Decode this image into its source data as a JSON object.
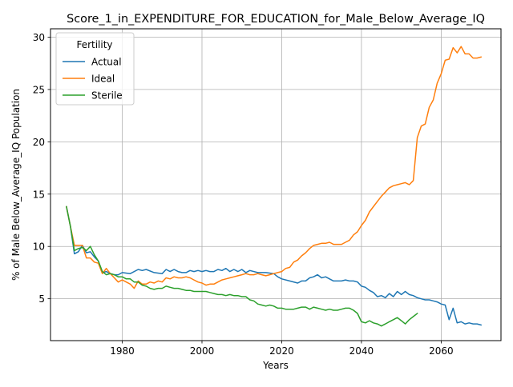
{
  "chart_data": {
    "type": "line",
    "title": "Score_1_in_EXPENDITURE_FOR_EDUCATION_for_Male_Below_Average_IQ",
    "xlabel": "Years",
    "ylabel": "% of Male Below_Average_IQ Population",
    "xlim": [
      1962,
      2075
    ],
    "ylim": [
      1.0,
      30.8
    ],
    "xticks": [
      1980,
      2000,
      2020,
      2040,
      2060
    ],
    "yticks": [
      5,
      10,
      15,
      20,
      25,
      30
    ],
    "grid": true,
    "legend": {
      "title": "Fertility",
      "placement": "top-left"
    },
    "series": [
      {
        "name": "Actual",
        "color": "#1f77b4",
        "x": [
          1966,
          1967,
          1968,
          1969,
          1970,
          1971,
          1972,
          1973,
          1974,
          1975,
          1976,
          1977,
          1978,
          1979,
          1980,
          1982,
          1984,
          1985,
          1986,
          1988,
          1990,
          1991,
          1992,
          1993,
          1994,
          1995,
          1996,
          1997,
          1998,
          1999,
          2000,
          2001,
          2002,
          2003,
          2004,
          2005,
          2006,
          2007,
          2008,
          2009,
          2010,
          2011,
          2012,
          2014,
          2016,
          2018,
          2019,
          2020,
          2022,
          2024,
          2025,
          2026,
          2027,
          2028,
          2029,
          2030,
          2031,
          2032,
          2033,
          2034,
          2035,
          2036,
          2037,
          2038,
          2039,
          2040,
          2041,
          2042,
          2043,
          2044,
          2045,
          2046,
          2047,
          2048,
          2049,
          2050,
          2051,
          2052,
          2053,
          2054,
          2055,
          2056,
          2057,
          2058,
          2059,
          2060,
          2061,
          2062,
          2063,
          2064,
          2065,
          2066,
          2067,
          2068,
          2069,
          2070
        ],
        "y": [
          13.8,
          11.9,
          9.3,
          9.5,
          10.1,
          9.4,
          9.5,
          9.0,
          8.6,
          7.5,
          7.6,
          7.4,
          7.3,
          7.3,
          7.5,
          7.4,
          7.8,
          7.7,
          7.8,
          7.5,
          7.4,
          7.8,
          7.6,
          7.8,
          7.6,
          7.5,
          7.5,
          7.7,
          7.6,
          7.7,
          7.6,
          7.7,
          7.6,
          7.6,
          7.8,
          7.7,
          7.9,
          7.6,
          7.8,
          7.6,
          7.8,
          7.5,
          7.7,
          7.5,
          7.5,
          7.4,
          7.1,
          6.9,
          6.7,
          6.5,
          6.7,
          6.7,
          7.0,
          7.1,
          7.3,
          7.0,
          7.1,
          6.9,
          6.7,
          6.7,
          6.7,
          6.8,
          6.7,
          6.7,
          6.6,
          6.2,
          6.1,
          5.8,
          5.6,
          5.2,
          5.3,
          5.1,
          5.5,
          5.2,
          5.7,
          5.4,
          5.7,
          5.4,
          5.3,
          5.1,
          5.0,
          4.9,
          4.9,
          4.8,
          4.7,
          4.5,
          4.4,
          3.0,
          4.1,
          2.7,
          2.8,
          2.6,
          2.7,
          2.6,
          2.6,
          2.5
        ]
      },
      {
        "name": "Ideal",
        "color": "#ff7f0e",
        "x": [
          1966,
          1967,
          1968,
          1969,
          1970,
          1971,
          1972,
          1973,
          1974,
          1975,
          1976,
          1977,
          1978,
          1979,
          1980,
          1982,
          1983,
          1984,
          1985,
          1986,
          1987,
          1988,
          1989,
          1990,
          1991,
          1992,
          1993,
          1994,
          1995,
          1996,
          1997,
          1998,
          1999,
          2000,
          2001,
          2002,
          2003,
          2004,
          2005,
          2006,
          2007,
          2008,
          2009,
          2010,
          2011,
          2012,
          2013,
          2014,
          2015,
          2016,
          2017,
          2018,
          2019,
          2020,
          2021,
          2022,
          2023,
          2024,
          2025,
          2026,
          2027,
          2028,
          2029,
          2030,
          2031,
          2032,
          2033,
          2034,
          2035,
          2036,
          2037,
          2038,
          2039,
          2040,
          2041,
          2042,
          2043,
          2044,
          2045,
          2046,
          2047,
          2048,
          2049,
          2050,
          2051,
          2052,
          2053,
          2054,
          2055,
          2056,
          2057,
          2058,
          2059,
          2060,
          2061,
          2062,
          2063,
          2064,
          2065,
          2066,
          2067,
          2068,
          2069,
          2070
        ],
        "y": [
          13.8,
          11.9,
          10.1,
          10.1,
          10.1,
          8.9,
          8.9,
          8.5,
          8.4,
          7.4,
          7.9,
          7.4,
          7.0,
          6.6,
          6.8,
          6.4,
          6.0,
          6.7,
          6.4,
          6.4,
          6.6,
          6.5,
          6.7,
          6.6,
          7.0,
          6.9,
          7.1,
          7.0,
          7.0,
          7.1,
          7.0,
          6.8,
          6.6,
          6.5,
          6.3,
          6.4,
          6.4,
          6.6,
          6.8,
          6.9,
          7.0,
          7.1,
          7.2,
          7.3,
          7.4,
          7.3,
          7.3,
          7.4,
          7.3,
          7.2,
          7.3,
          7.4,
          7.5,
          7.6,
          7.9,
          8.0,
          8.5,
          8.7,
          9.1,
          9.4,
          9.8,
          10.1,
          10.2,
          10.3,
          10.3,
          10.4,
          10.2,
          10.2,
          10.2,
          10.4,
          10.6,
          11.1,
          11.4,
          12.0,
          12.5,
          13.3,
          13.8,
          14.3,
          14.8,
          15.2,
          15.6,
          15.8,
          15.9,
          16.0,
          16.1,
          15.9,
          16.3,
          20.4,
          21.5,
          21.7,
          23.3,
          24.0,
          25.6,
          26.5,
          27.8,
          27.9,
          29.0,
          28.5,
          29.1,
          28.4,
          28.4,
          28.0,
          28.0,
          28.1
        ]
      },
      {
        "name": "Sterile",
        "color": "#2ca02c",
        "x": [
          1966,
          1967,
          1968,
          1969,
          1970,
          1971,
          1972,
          1973,
          1974,
          1975,
          1976,
          1977,
          1978,
          1979,
          1980,
          1981,
          1982,
          1983,
          1984,
          1985,
          1986,
          1987,
          1988,
          1989,
          1990,
          1991,
          1992,
          1993,
          1994,
          1995,
          1996,
          1997,
          1998,
          1999,
          2000,
          2001,
          2002,
          2003,
          2004,
          2005,
          2006,
          2007,
          2008,
          2009,
          2010,
          2011,
          2012,
          2013,
          2014,
          2015,
          2016,
          2017,
          2018,
          2019,
          2020,
          2021,
          2022,
          2023,
          2024,
          2025,
          2026,
          2027,
          2028,
          2029,
          2030,
          2031,
          2032,
          2033,
          2034,
          2035,
          2036,
          2037,
          2038,
          2039,
          2040,
          2041,
          2042,
          2043,
          2044,
          2045,
          2046,
          2047,
          2048,
          2049,
          2050,
          2051,
          2052,
          2053,
          2054
        ],
        "y": [
          13.8,
          11.9,
          9.6,
          9.8,
          9.9,
          9.6,
          10.0,
          9.2,
          8.6,
          7.6,
          7.3,
          7.4,
          7.3,
          7.1,
          7.1,
          6.9,
          6.9,
          6.6,
          6.6,
          6.3,
          6.2,
          6.0,
          5.9,
          6.0,
          6.0,
          6.2,
          6.1,
          6.0,
          6.0,
          5.9,
          5.8,
          5.8,
          5.7,
          5.7,
          5.7,
          5.7,
          5.6,
          5.5,
          5.4,
          5.4,
          5.3,
          5.4,
          5.3,
          5.3,
          5.2,
          5.2,
          4.9,
          4.8,
          4.5,
          4.4,
          4.3,
          4.4,
          4.3,
          4.1,
          4.1,
          4.0,
          4.0,
          4.0,
          4.1,
          4.2,
          4.2,
          4.0,
          4.2,
          4.1,
          4.0,
          3.9,
          4.0,
          3.9,
          3.9,
          4.0,
          4.1,
          4.1,
          3.9,
          3.6,
          2.8,
          2.7,
          2.9,
          2.7,
          2.6,
          2.4,
          2.6,
          2.8,
          3.0,
          3.2,
          2.9,
          2.6,
          3.0,
          3.3,
          3.6
        ]
      }
    ]
  }
}
